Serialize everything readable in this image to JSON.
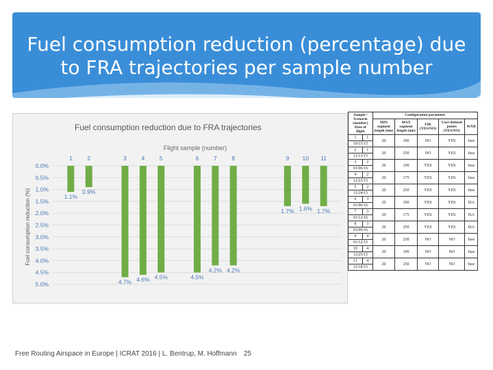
{
  "slide": {
    "title_line1": "Fuel consumption reduction (percentage) due",
    "title_line2": "to FRA trajectories per sample number",
    "footer": "Free Routing Airspace in Europe | ICRAT 2016 | L. Bentrup, M. Hoffmann",
    "page_number": "25",
    "colors": {
      "header": "#3a8ed8",
      "bar": "#70ad47",
      "label": "#4a79b8"
    }
  },
  "chart_data": {
    "type": "bar",
    "title": "Fuel consumption reduction due to FRA trajectories",
    "xlabel": "Flight sample (number)",
    "ylabel": "Fuel consumption reduction (%)",
    "ylim": [
      0,
      5
    ],
    "y_inverted": true,
    "x_axis_position": "top",
    "yticks": [
      "0.0%",
      "0.5%",
      "1.0%",
      "1.5%",
      "2.0%",
      "2.5%",
      "3.0%",
      "3.5%",
      "4.0%",
      "4.5%",
      "5.0%"
    ],
    "categories": [
      "1",
      "2",
      "3",
      "4",
      "5",
      "6",
      "7",
      "8",
      "9",
      "10",
      "11"
    ],
    "values": [
      1.1,
      0.9,
      4.7,
      4.6,
      4.5,
      4.5,
      4.2,
      4.2,
      1.7,
      1.6,
      1.7
    ],
    "data_labels": [
      "1.1%",
      "0.9%",
      "4.7%",
      "4.6%",
      "4.5%",
      "4.5%",
      "4.2%",
      "4.2%",
      "1.7%",
      "1.6%",
      "1.7%"
    ],
    "x_positions": [
      1,
      2,
      4,
      5,
      6,
      8,
      9,
      10,
      13,
      14,
      15
    ]
  },
  "config_table": {
    "headers": {
      "sample": "Sample / Scenario (number)",
      "date": "Date of flight",
      "group": "Configuration parameter",
      "min_seg": "MIN segment length (nm)",
      "max_seg": "MAX segment length (nm)",
      "fir": "FIR (YES/NO)",
      "user_points": "User-defined points (YES/NO)",
      "weather": "WXR"
    },
    "rows": [
      {
        "sample": "1",
        "scenario": "1",
        "date": "10/15/15",
        "min": "20",
        "max": "100",
        "fir": "NO",
        "udp": "YES",
        "wxr": "fuse"
      },
      {
        "sample": "2",
        "scenario": "1",
        "date": "12/13/15",
        "min": "20",
        "max": "250",
        "fir": "NO",
        "udp": "YES",
        "wxr": "fuse"
      },
      {
        "sample": "3",
        "scenario": "2",
        "date": "01/06/16",
        "min": "20",
        "max": "100",
        "fir": "YES",
        "udp": "YES",
        "wxr": "fuse"
      },
      {
        "sample": "4",
        "scenario": "2",
        "date": "12/23/15",
        "min": "20",
        "max": "175",
        "fir": "YES",
        "udp": "YES",
        "wxr": "fuse"
      },
      {
        "sample": "5",
        "scenario": "2",
        "date": "12/24/15",
        "min": "20",
        "max": "250",
        "fir": "YES",
        "udp": "YES",
        "wxr": "fuse"
      },
      {
        "sample": "6",
        "scenario": "3",
        "date": "01/06/16",
        "min": "20",
        "max": "100",
        "fir": "YES",
        "udp": "YES",
        "wxr": "ISA"
      },
      {
        "sample": "7",
        "scenario": "3",
        "date": "01/12/16",
        "min": "20",
        "max": "175",
        "fir": "YES",
        "udp": "YES",
        "wxr": "ISA"
      },
      {
        "sample": "8",
        "scenario": "3",
        "date": "01/06/16",
        "min": "20",
        "max": "250",
        "fir": "YES",
        "udp": "YES",
        "wxr": "ISA"
      },
      {
        "sample": "9",
        "scenario": "4",
        "date": "01/12/15",
        "min": "20",
        "max": "250",
        "fir": "NO",
        "udp": "NO",
        "wxr": "fuse"
      },
      {
        "sample": "10",
        "scenario": "4",
        "date": "12/25/15",
        "min": "20",
        "max": "100",
        "fir": "NO",
        "udp": "NO",
        "wxr": "fuse"
      },
      {
        "sample": "11",
        "scenario": "4",
        "date": "12/18/15",
        "min": "20",
        "max": "250",
        "fir": "NO",
        "udp": "NO",
        "wxr": "fuse"
      }
    ]
  }
}
